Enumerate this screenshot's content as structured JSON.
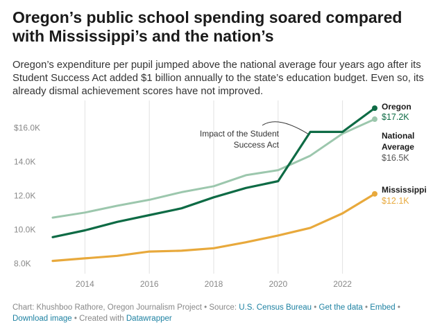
{
  "headline": "Oregon’s public school spending soared compared with Mississippi’s and the nation’s",
  "description": "Oregon’s expenditure per pupil jumped above the national average four years ago after its Student Success Act added $1 billion annually to the state’s education budget. Even so, its already dismal achievement scores have not improved.",
  "footer": {
    "credit": "Chart: Khushboo Rathore, Oregon Journalism Project",
    "source_prefix": "Source:",
    "source_link": "U.S. Census Bureau",
    "get_data": "Get the data",
    "embed": "Embed",
    "download": "Download image",
    "created_prefix": "Created with",
    "created_link": "Datawrapper",
    "separator": "•"
  },
  "colors": {
    "oregon": "#0e6b45",
    "national": "#9cc7ad",
    "mississippi": "#e8a93c",
    "grid": "#e2e2e2",
    "tick": "#888888",
    "link": "#1d81a2"
  },
  "chart_data": {
    "type": "line",
    "x": [
      2013,
      2014,
      2015,
      2016,
      2017,
      2018,
      2019,
      2020,
      2021,
      2022,
      2023
    ],
    "x_ticks": [
      "2014",
      "2016",
      "2018",
      "2020",
      "2022"
    ],
    "x_tick_values": [
      2014,
      2016,
      2018,
      2020,
      2022
    ],
    "y_ticks": [
      "8.0K",
      "10.0K",
      "12.0K",
      "14.0K",
      "$16.0K"
    ],
    "y_tick_values": [
      8000,
      10000,
      12000,
      14000,
      16000
    ],
    "xlim": [
      2013,
      2023
    ],
    "ylim": [
      7400,
      17400
    ],
    "grid": "vertical",
    "series": [
      {
        "name": "National Average",
        "key": "national",
        "values": [
          10700,
          11000,
          11400,
          11750,
          12200,
          12550,
          13200,
          13500,
          14350,
          15650,
          16500
        ],
        "end_label": [
          "National",
          "Average"
        ],
        "end_value": "$16.5K"
      },
      {
        "name": "Oregon",
        "key": "oregon",
        "values": [
          9550,
          9950,
          10450,
          10850,
          11250,
          11900,
          12450,
          12850,
          15750,
          15750,
          17150
        ],
        "end_label": [
          "Oregon"
        ],
        "end_value": "$17.2K"
      },
      {
        "name": "Mississippi",
        "key": "mississippi",
        "values": [
          8150,
          8300,
          8450,
          8700,
          8750,
          8900,
          9250,
          9650,
          10100,
          10950,
          12100
        ],
        "end_label": [
          "Mississippi"
        ],
        "end_value": "$12.1K"
      }
    ],
    "annotation": {
      "lines": [
        "Impact of the Student",
        "Success Act"
      ],
      "target_x": 2021,
      "target_y": 15750
    }
  }
}
